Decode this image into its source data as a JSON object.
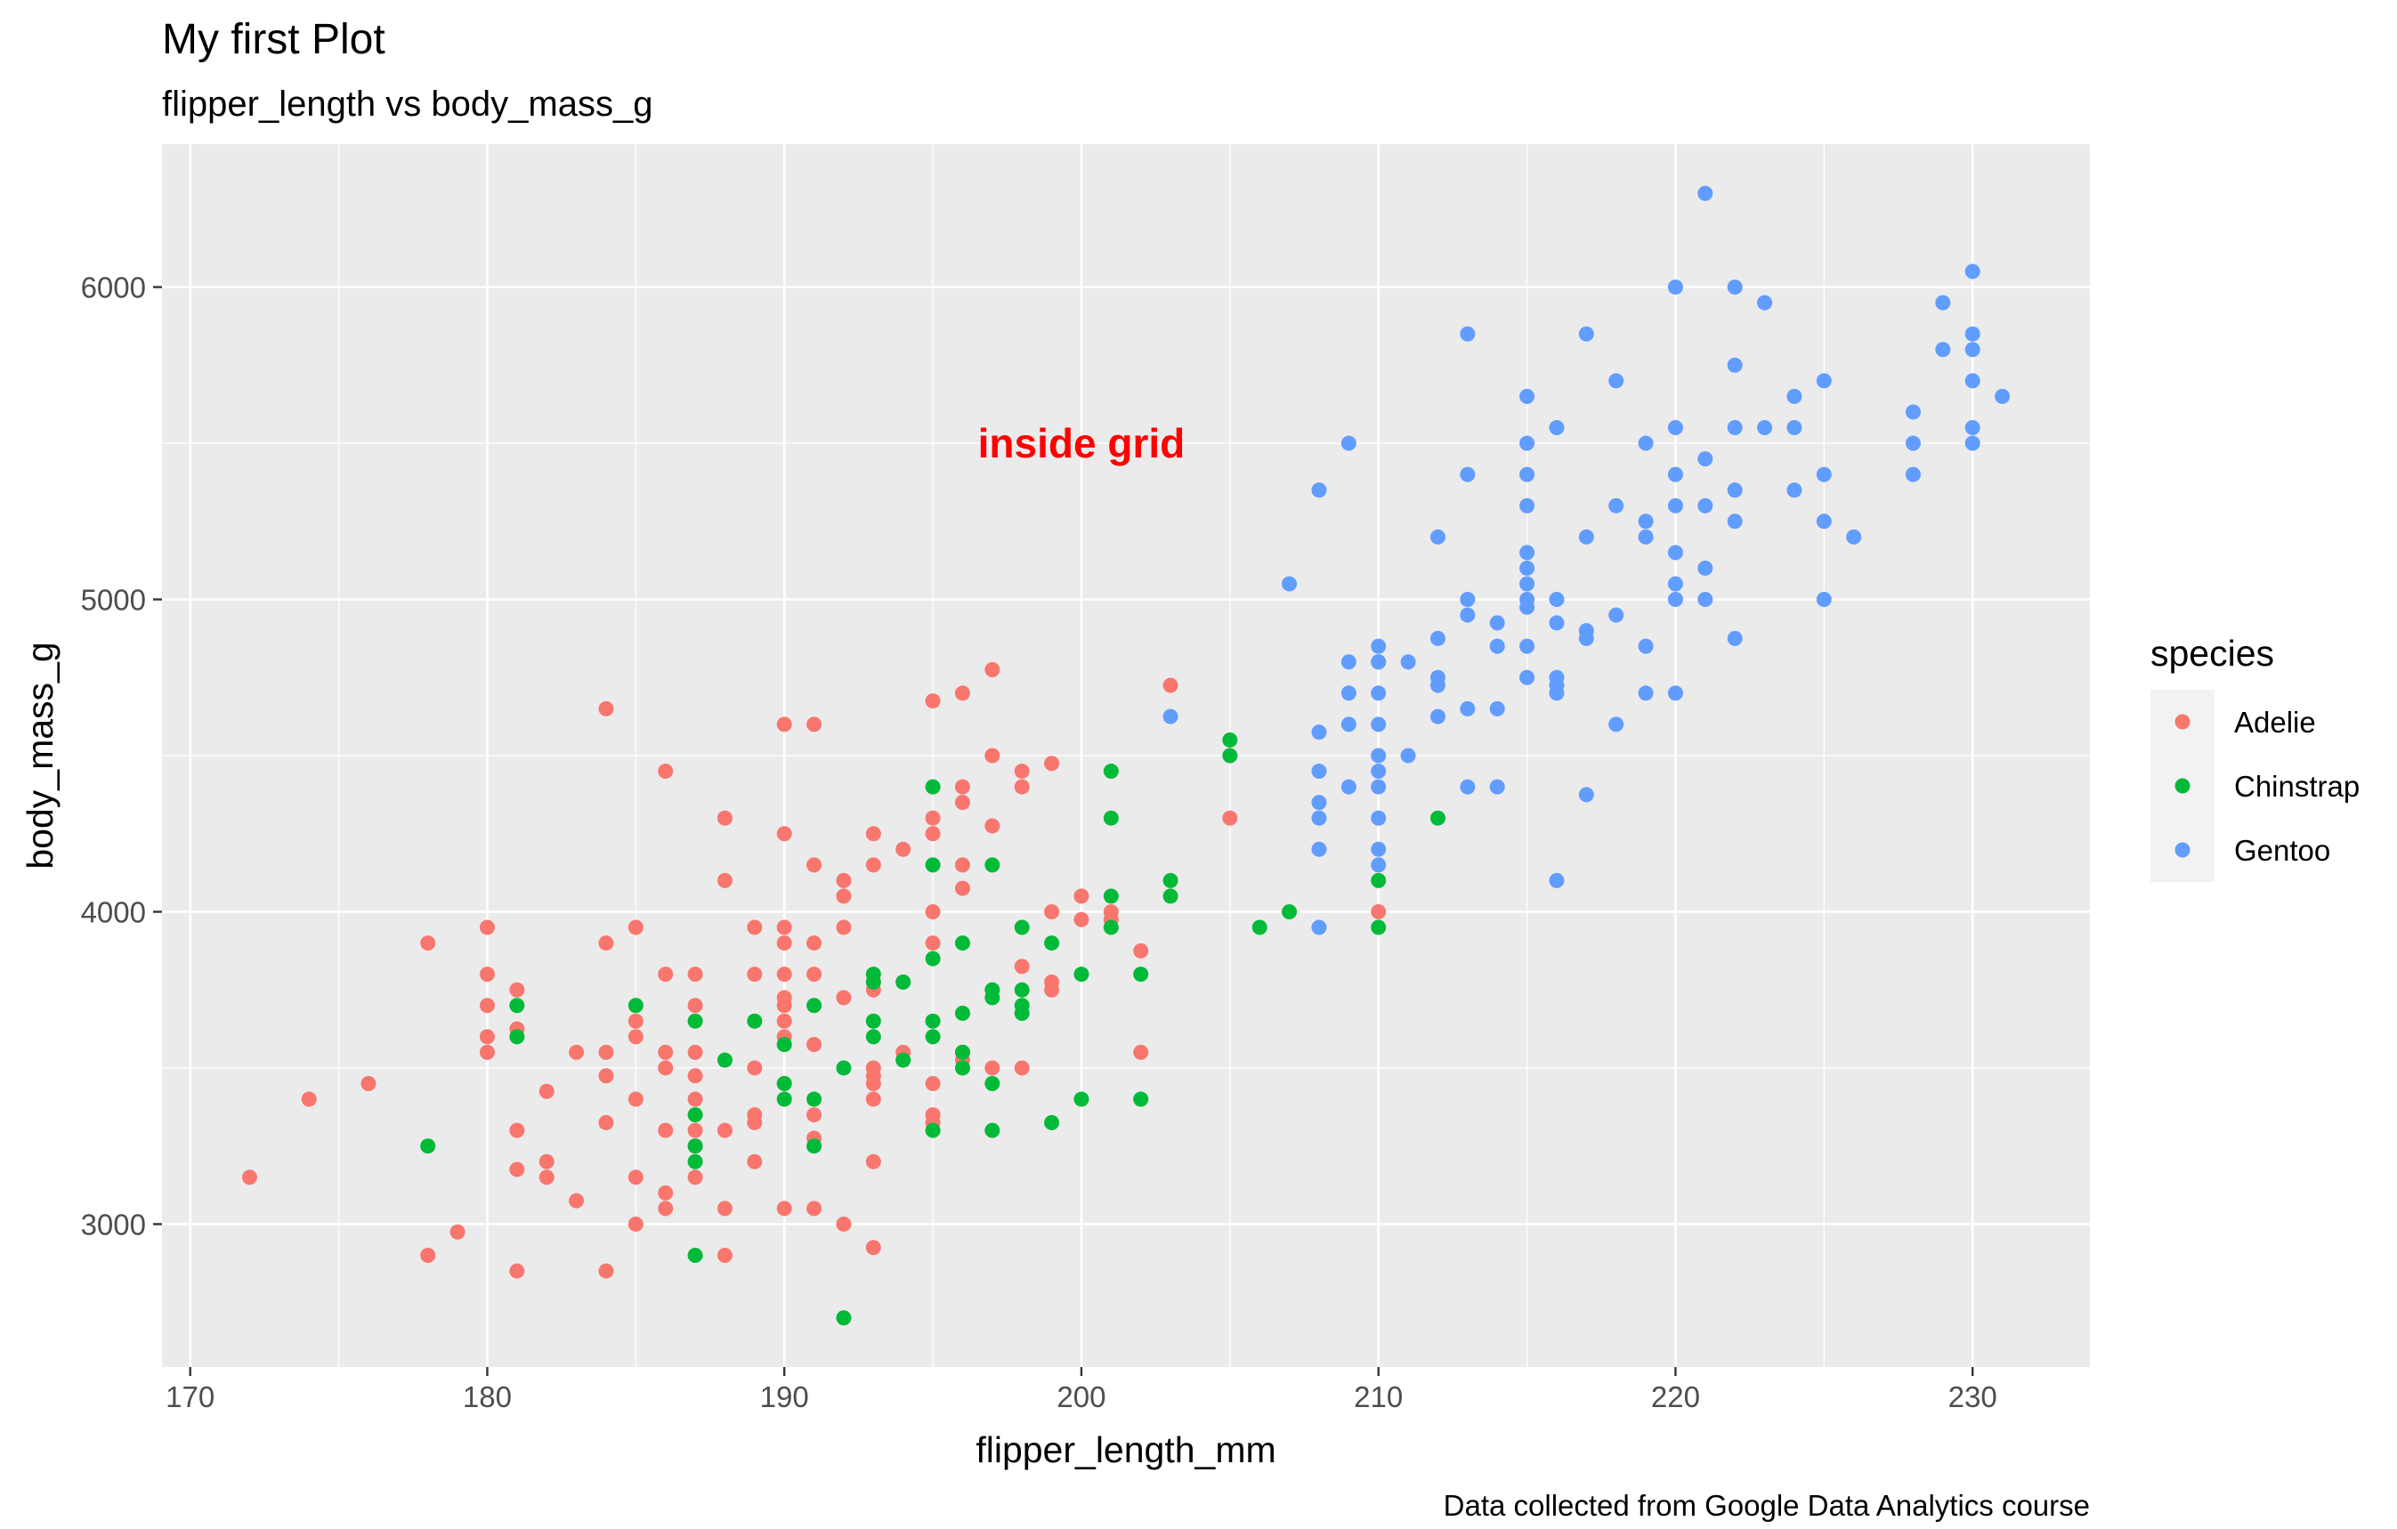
{
  "chart_data": {
    "type": "scatter",
    "title": "My first Plot",
    "subtitle": "flipper_length vs body_mass_g",
    "xlabel": "flipper_length_mm",
    "ylabel": "body_mass_g",
    "caption": "Data collected from Google Data Analytics course",
    "annotation": {
      "text": "inside grid",
      "x": 200,
      "y": 5500,
      "color": "#ff0000"
    },
    "xlim": [
      169.05,
      233.95
    ],
    "ylim": [
      2542.5,
      6457.5
    ],
    "x_ticks": [
      170,
      180,
      190,
      200,
      210,
      220,
      230
    ],
    "x_tick_labels": [
      "170",
      "180",
      "190",
      "200",
      "210",
      "220",
      "230"
    ],
    "y_ticks": [
      3000,
      4000,
      5000,
      6000
    ],
    "y_tick_labels": [
      "3000",
      "4000",
      "5000",
      "6000"
    ],
    "grid": true,
    "legend": {
      "title": "species",
      "position": "right"
    },
    "series": [
      {
        "name": "Adelie",
        "color": "#F8766D",
        "points": [
          [
            172,
            3150
          ],
          [
            174,
            3400
          ],
          [
            176,
            3450
          ],
          [
            178,
            3900
          ],
          [
            178,
            2900
          ],
          [
            179,
            2975
          ],
          [
            180,
            3950
          ],
          [
            180,
            3800
          ],
          [
            180,
            3700
          ],
          [
            180,
            3600
          ],
          [
            180,
            3550
          ],
          [
            181,
            3750
          ],
          [
            181,
            3625
          ],
          [
            181,
            3300
          ],
          [
            181,
            3175
          ],
          [
            181,
            2850
          ],
          [
            182,
            3425
          ],
          [
            182,
            3200
          ],
          [
            182,
            3150
          ],
          [
            183,
            3550
          ],
          [
            183,
            3075
          ],
          [
            184,
            4650
          ],
          [
            184,
            3900
          ],
          [
            184,
            3550
          ],
          [
            184,
            3475
          ],
          [
            184,
            3325
          ],
          [
            184,
            2850
          ],
          [
            185,
            3950
          ],
          [
            185,
            3650
          ],
          [
            185,
            3600
          ],
          [
            185,
            3400
          ],
          [
            185,
            3150
          ],
          [
            185,
            3000
          ],
          [
            186,
            4450
          ],
          [
            186,
            3800
          ],
          [
            186,
            3550
          ],
          [
            186,
            3500
          ],
          [
            186,
            3300
          ],
          [
            186,
            3100
          ],
          [
            186,
            3050
          ],
          [
            187,
            3800
          ],
          [
            187,
            3700
          ],
          [
            187,
            3550
          ],
          [
            187,
            3475
          ],
          [
            187,
            3400
          ],
          [
            187,
            3300
          ],
          [
            187,
            3250
          ],
          [
            187,
            3150
          ],
          [
            188,
            4300
          ],
          [
            188,
            4100
          ],
          [
            188,
            3300
          ],
          [
            188,
            3050
          ],
          [
            188,
            2900
          ],
          [
            189,
            3950
          ],
          [
            189,
            3800
          ],
          [
            189,
            3500
          ],
          [
            189,
            3350
          ],
          [
            189,
            3325
          ],
          [
            189,
            3200
          ],
          [
            190,
            4600
          ],
          [
            190,
            4250
          ],
          [
            190,
            3950
          ],
          [
            190,
            3900
          ],
          [
            190,
            3800
          ],
          [
            190,
            3725
          ],
          [
            190,
            3700
          ],
          [
            190,
            3650
          ],
          [
            190,
            3600
          ],
          [
            190,
            3450
          ],
          [
            190,
            3050
          ],
          [
            191,
            4600
          ],
          [
            191,
            4150
          ],
          [
            191,
            3900
          ],
          [
            191,
            3800
          ],
          [
            191,
            3575
          ],
          [
            191,
            3350
          ],
          [
            191,
            3275
          ],
          [
            191,
            3050
          ],
          [
            192,
            4100
          ],
          [
            192,
            4050
          ],
          [
            192,
            3950
          ],
          [
            192,
            3725
          ],
          [
            192,
            3000
          ],
          [
            193,
            4250
          ],
          [
            193,
            4150
          ],
          [
            193,
            3775
          ],
          [
            193,
            3750
          ],
          [
            193,
            3500
          ],
          [
            193,
            3475
          ],
          [
            193,
            3450
          ],
          [
            193,
            3400
          ],
          [
            193,
            3200
          ],
          [
            193,
            2925
          ],
          [
            194,
            4200
          ],
          [
            194,
            3775
          ],
          [
            194,
            3550
          ],
          [
            195,
            4675
          ],
          [
            195,
            4300
          ],
          [
            195,
            4250
          ],
          [
            195,
            4000
          ],
          [
            195,
            3900
          ],
          [
            195,
            3450
          ],
          [
            195,
            3350
          ],
          [
            195,
            3325
          ],
          [
            196,
            4700
          ],
          [
            196,
            4400
          ],
          [
            196,
            4350
          ],
          [
            196,
            4150
          ],
          [
            196,
            4075
          ],
          [
            196,
            3550
          ],
          [
            196,
            3525
          ],
          [
            197,
            4775
          ],
          [
            197,
            4500
          ],
          [
            197,
            4275
          ],
          [
            197,
            3500
          ],
          [
            198,
            4450
          ],
          [
            198,
            4400
          ],
          [
            198,
            3825
          ],
          [
            198,
            3500
          ],
          [
            199,
            4475
          ],
          [
            199,
            4000
          ],
          [
            199,
            3775
          ],
          [
            199,
            3750
          ],
          [
            200,
            4050
          ],
          [
            200,
            3975
          ],
          [
            201,
            4000
          ],
          [
            201,
            3975
          ],
          [
            202,
            3875
          ],
          [
            202,
            3550
          ],
          [
            203,
            4725
          ],
          [
            205,
            4300
          ],
          [
            210,
            4000
          ]
        ]
      },
      {
        "name": "Chinstrap",
        "color": "#00BA38",
        "points": [
          [
            178,
            3250
          ],
          [
            181,
            3700
          ],
          [
            181,
            3600
          ],
          [
            185,
            3700
          ],
          [
            187,
            3650
          ],
          [
            187,
            3350
          ],
          [
            187,
            3250
          ],
          [
            187,
            3200
          ],
          [
            187,
            2900
          ],
          [
            188,
            3525
          ],
          [
            189,
            3650
          ],
          [
            190,
            3575
          ],
          [
            190,
            3450
          ],
          [
            190,
            3400
          ],
          [
            191,
            3700
          ],
          [
            191,
            3400
          ],
          [
            191,
            3250
          ],
          [
            192,
            3500
          ],
          [
            192,
            2700
          ],
          [
            193,
            3800
          ],
          [
            193,
            3775
          ],
          [
            193,
            3650
          ],
          [
            193,
            3600
          ],
          [
            194,
            3775
          ],
          [
            194,
            3525
          ],
          [
            195,
            4400
          ],
          [
            195,
            4150
          ],
          [
            195,
            3850
          ],
          [
            195,
            3650
          ],
          [
            195,
            3600
          ],
          [
            195,
            3300
          ],
          [
            196,
            3900
          ],
          [
            196,
            3675
          ],
          [
            196,
            3550
          ],
          [
            196,
            3500
          ],
          [
            197,
            4150
          ],
          [
            197,
            3750
          ],
          [
            197,
            3725
          ],
          [
            197,
            3450
          ],
          [
            197,
            3300
          ],
          [
            198,
            3950
          ],
          [
            198,
            3750
          ],
          [
            198,
            3700
          ],
          [
            198,
            3675
          ],
          [
            199,
            3900
          ],
          [
            199,
            3325
          ],
          [
            200,
            3800
          ],
          [
            200,
            3400
          ],
          [
            201,
            4450
          ],
          [
            201,
            4300
          ],
          [
            201,
            4050
          ],
          [
            201,
            3950
          ],
          [
            202,
            3800
          ],
          [
            202,
            3400
          ],
          [
            203,
            4100
          ],
          [
            203,
            4050
          ],
          [
            205,
            4550
          ],
          [
            205,
            4500
          ],
          [
            206,
            3950
          ],
          [
            207,
            4000
          ],
          [
            210,
            4800
          ],
          [
            210,
            4100
          ],
          [
            210,
            3950
          ],
          [
            212,
            4300
          ]
        ]
      },
      {
        "name": "Gentoo",
        "color": "#619CFF",
        "points": [
          [
            203,
            4625
          ],
          [
            207,
            5050
          ],
          [
            208,
            5350
          ],
          [
            208,
            4575
          ],
          [
            208,
            4450
          ],
          [
            208,
            4350
          ],
          [
            208,
            4300
          ],
          [
            208,
            4200
          ],
          [
            208,
            3950
          ],
          [
            209,
            5500
          ],
          [
            209,
            4800
          ],
          [
            209,
            4700
          ],
          [
            209,
            4600
          ],
          [
            209,
            4400
          ],
          [
            210,
            4850
          ],
          [
            210,
            4800
          ],
          [
            210,
            4700
          ],
          [
            210,
            4600
          ],
          [
            210,
            4500
          ],
          [
            210,
            4450
          ],
          [
            210,
            4400
          ],
          [
            210,
            4300
          ],
          [
            210,
            4200
          ],
          [
            210,
            4150
          ],
          [
            211,
            4800
          ],
          [
            211,
            4500
          ],
          [
            212,
            5200
          ],
          [
            212,
            4875
          ],
          [
            212,
            4750
          ],
          [
            212,
            4725
          ],
          [
            212,
            4625
          ],
          [
            213,
            5850
          ],
          [
            213,
            5400
          ],
          [
            213,
            5000
          ],
          [
            213,
            4950
          ],
          [
            213,
            4650
          ],
          [
            213,
            4400
          ],
          [
            214,
            4925
          ],
          [
            214,
            4850
          ],
          [
            214,
            4650
          ],
          [
            214,
            4400
          ],
          [
            215,
            5650
          ],
          [
            215,
            5500
          ],
          [
            215,
            5400
          ],
          [
            215,
            5300
          ],
          [
            215,
            5150
          ],
          [
            215,
            5100
          ],
          [
            215,
            5050
          ],
          [
            215,
            5000
          ],
          [
            215,
            4975
          ],
          [
            215,
            4850
          ],
          [
            215,
            4750
          ],
          [
            216,
            5550
          ],
          [
            216,
            5000
          ],
          [
            216,
            4925
          ],
          [
            216,
            4750
          ],
          [
            216,
            4725
          ],
          [
            216,
            4700
          ],
          [
            216,
            4100
          ],
          [
            217,
            5850
          ],
          [
            217,
            5200
          ],
          [
            217,
            4900
          ],
          [
            217,
            4875
          ],
          [
            217,
            4375
          ],
          [
            218,
            5700
          ],
          [
            218,
            5300
          ],
          [
            218,
            4950
          ],
          [
            218,
            4600
          ],
          [
            219,
            5500
          ],
          [
            219,
            5250
          ],
          [
            219,
            5200
          ],
          [
            219,
            4850
          ],
          [
            219,
            4700
          ],
          [
            220,
            6000
          ],
          [
            220,
            5550
          ],
          [
            220,
            5400
          ],
          [
            220,
            5300
          ],
          [
            220,
            5150
          ],
          [
            220,
            5050
          ],
          [
            220,
            5000
          ],
          [
            220,
            4700
          ],
          [
            221,
            6300
          ],
          [
            221,
            5450
          ],
          [
            221,
            5300
          ],
          [
            221,
            5100
          ],
          [
            221,
            5000
          ],
          [
            222,
            6000
          ],
          [
            222,
            5750
          ],
          [
            222,
            5550
          ],
          [
            222,
            5350
          ],
          [
            222,
            5250
          ],
          [
            222,
            4875
          ],
          [
            223,
            5950
          ],
          [
            223,
            5550
          ],
          [
            224,
            5650
          ],
          [
            224,
            5550
          ],
          [
            224,
            5350
          ],
          [
            225,
            5700
          ],
          [
            225,
            5400
          ],
          [
            225,
            5250
          ],
          [
            225,
            5000
          ],
          [
            226,
            5200
          ],
          [
            228,
            5600
          ],
          [
            228,
            5500
          ],
          [
            228,
            5400
          ],
          [
            229,
            5950
          ],
          [
            229,
            5800
          ],
          [
            230,
            6050
          ],
          [
            230,
            5850
          ],
          [
            230,
            5800
          ],
          [
            230,
            5700
          ],
          [
            230,
            5550
          ],
          [
            230,
            5500
          ],
          [
            231,
            5650
          ]
        ]
      }
    ]
  }
}
